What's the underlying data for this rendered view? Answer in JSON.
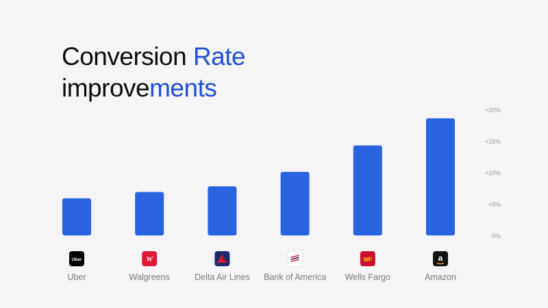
{
  "title": {
    "line1_part1": "Conversion ",
    "line1_part2": "Rate",
    "line2_part1": "improve",
    "line2_part2": "ments"
  },
  "title_gradient": {
    "start": "#0d0d0d",
    "end": "#1f4fd6"
  },
  "colors": {
    "bar": "#2a63e0",
    "axis_text": "#9a9aa0",
    "label_text": "#7a7a80",
    "background": "#f5f5f7"
  },
  "chart_data": {
    "type": "bar",
    "categories": [
      "Uber",
      "Walgreens",
      "Delta Air Lines",
      "Bank of America",
      "Wells Fargo",
      "Amazon"
    ],
    "values": [
      5.9,
      6.9,
      7.8,
      10.1,
      14.3,
      18.6
    ],
    "ylim": [
      0,
      20
    ],
    "yticks": [
      "+20%",
      "+15%",
      "+10%",
      "+5%",
      "0%"
    ],
    "ytick_values": [
      20,
      15,
      10,
      5,
      0
    ],
    "title": "Conversion Rate improvements",
    "xlabel": "",
    "ylabel": "",
    "grid": false,
    "y_axis_side": "right"
  },
  "logos": [
    {
      "icon": "uber-logo-icon",
      "text": "Uber",
      "bg": "#000000",
      "fg": "#ffffff"
    },
    {
      "icon": "walgreens-logo-icon",
      "text": "W",
      "bg": "#e31837",
      "fg": "#ffffff"
    },
    {
      "icon": "delta-logo-icon",
      "text": "",
      "bg": "#1b2a6b",
      "fg": "#e01933"
    },
    {
      "icon": "bank-of-america-logo-icon",
      "text": "",
      "bg": "#ffffff",
      "fg": "#e31837"
    },
    {
      "icon": "wells-fargo-logo-icon",
      "text": "WF",
      "bg": "#c8102e",
      "fg": "#ffd200"
    },
    {
      "icon": "amazon-logo-icon",
      "text": "a",
      "bg": "#111111",
      "fg": "#ffffff"
    }
  ]
}
